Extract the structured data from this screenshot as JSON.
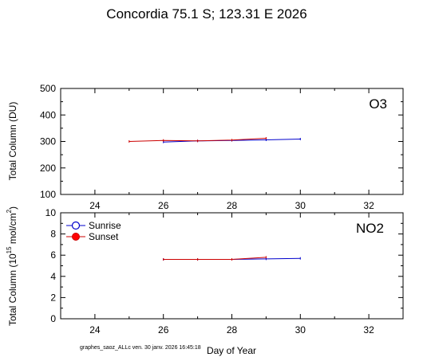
{
  "title": "Concordia  75.1 S; 123.31 E   2026",
  "footer": "graphes_saoz_ALLc   ven. 30 janv. 2026 16:45:18",
  "chart_data": [
    {
      "type": "line",
      "panel_label": "O3",
      "ylabel": "Total Column  (DU)",
      "xlim": [
        23,
        33
      ],
      "ylim": [
        100,
        500
      ],
      "xticks": [
        "24",
        "26",
        "28",
        "30",
        "32"
      ],
      "yticks": [
        "100",
        "200",
        "300",
        "400",
        "500"
      ],
      "series": [
        {
          "color": "#0000cc",
          "marker": "circle-open",
          "x": [
            26,
            27,
            28,
            29,
            30
          ],
          "y": [
            298,
            302,
            304,
            306,
            309
          ]
        },
        {
          "color": "#cc0000",
          "marker": "circle-filled",
          "x": [
            25,
            26,
            27,
            28,
            29
          ],
          "y": [
            300,
            304,
            302,
            305,
            312
          ]
        }
      ]
    },
    {
      "type": "line",
      "panel_label": "NO2",
      "ylabel_main": "Total Column (10",
      "ylabel_sup": "15",
      "ylabel_rest": " mol/cm",
      "ylabel_sup2": "2",
      "ylabel_end": ")",
      "xlabel": "Day of Year",
      "xlim": [
        23,
        33
      ],
      "ylim": [
        0,
        10
      ],
      "xticks": [
        "24",
        "26",
        "28",
        "30",
        "32"
      ],
      "yticks": [
        "0",
        "2",
        "4",
        "6",
        "8",
        "10"
      ],
      "legend_position": "top-left",
      "series": [
        {
          "name": "Sunrise",
          "color": "#0000cc",
          "marker": "circle-open",
          "x": [
            26,
            27,
            28,
            29,
            30
          ],
          "y": [
            5.6,
            5.6,
            5.6,
            5.65,
            5.7
          ]
        },
        {
          "name": "Sunset",
          "color": "#cc0000",
          "marker": "circle-filled",
          "x": [
            26,
            27,
            28,
            29
          ],
          "y": [
            5.6,
            5.6,
            5.6,
            5.8
          ]
        }
      ]
    }
  ]
}
